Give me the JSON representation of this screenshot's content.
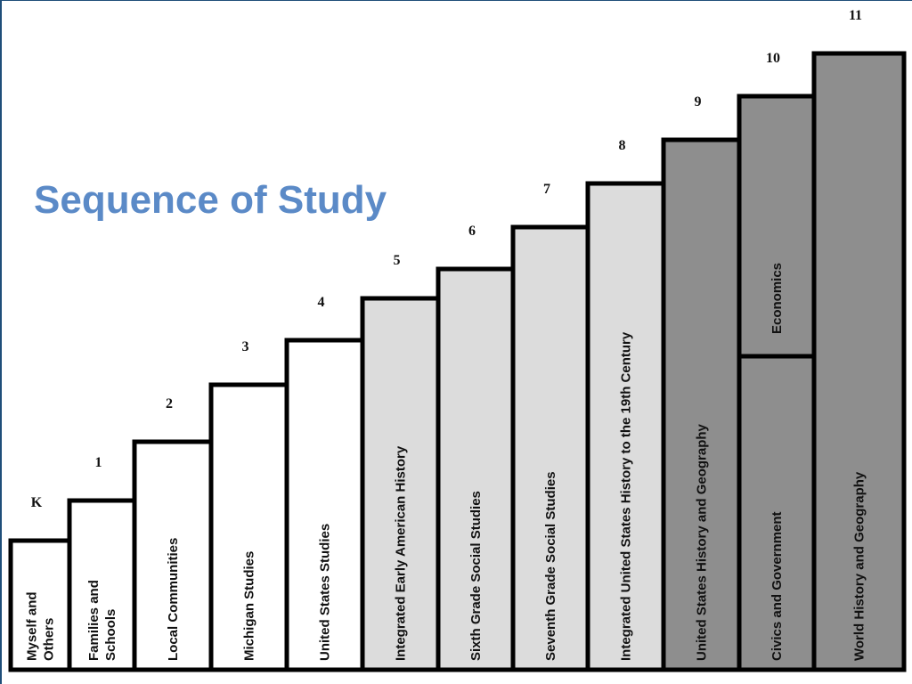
{
  "title": "Sequence of Study",
  "colors": {
    "title": "#5b8ac7",
    "step_white": "#ffffff",
    "step_light": "#dcdcdc",
    "step_dark": "#8e8e8e",
    "outline": "#000000"
  },
  "steps": [
    {
      "grade": "K",
      "fill": "white",
      "courses": [
        "Myself and",
        "Others"
      ]
    },
    {
      "grade": "1",
      "fill": "white",
      "courses": [
        "Families and",
        "Schools"
      ]
    },
    {
      "grade": "2",
      "fill": "white",
      "courses": [
        "Local Communities"
      ]
    },
    {
      "grade": "3",
      "fill": "white",
      "courses": [
        "Michigan Studies"
      ]
    },
    {
      "grade": "4",
      "fill": "white",
      "courses": [
        "United States Studies"
      ]
    },
    {
      "grade": "5",
      "fill": "light",
      "courses": [
        "Integrated Early American History"
      ]
    },
    {
      "grade": "6",
      "fill": "light",
      "courses": [
        "Sixth Grade Social Studies"
      ]
    },
    {
      "grade": "7",
      "fill": "light",
      "courses": [
        "Seventh Grade Social Studies"
      ]
    },
    {
      "grade": "8",
      "fill": "light",
      "courses": [
        "Integrated United States History to the 19th Century"
      ]
    },
    {
      "grade": "9",
      "fill": "dark",
      "courses": [
        "United States History and Geography"
      ]
    },
    {
      "grade": "10",
      "fill": "dark",
      "split": true,
      "upper": "Economics",
      "lower": "Civics and Government"
    },
    {
      "grade": "11",
      "fill": "dark",
      "courses": [
        "World History and Geography"
      ]
    }
  ]
}
